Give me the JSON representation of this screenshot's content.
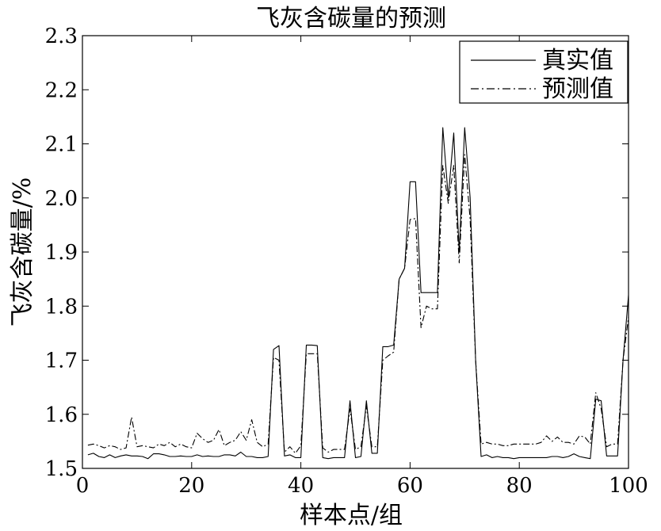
{
  "chart_data": {
    "type": "line",
    "title": "飞灰含碳量的预测",
    "xlabel": "样本点/组",
    "ylabel": "飞灰含碳量/%",
    "xlim": [
      0,
      100
    ],
    "ylim": [
      1.5,
      2.3
    ],
    "xticks": [
      0,
      20,
      40,
      60,
      80,
      100
    ],
    "yticks": [
      1.5,
      1.6,
      1.7,
      1.8,
      1.9,
      2.0,
      2.1,
      2.2,
      2.3
    ],
    "grid": false,
    "legend_position": "top-right",
    "x": [
      1,
      2,
      3,
      4,
      5,
      6,
      7,
      8,
      9,
      10,
      11,
      12,
      13,
      14,
      15,
      16,
      17,
      18,
      19,
      20,
      21,
      22,
      23,
      24,
      25,
      26,
      27,
      28,
      29,
      30,
      31,
      32,
      33,
      34,
      35,
      36,
      37,
      38,
      39,
      40,
      41,
      42,
      43,
      44,
      45,
      46,
      47,
      48,
      49,
      50,
      51,
      52,
      53,
      54,
      55,
      56,
      57,
      58,
      59,
      60,
      61,
      62,
      63,
      64,
      65,
      66,
      67,
      68,
      69,
      70,
      71,
      72,
      73,
      74,
      75,
      76,
      77,
      78,
      79,
      80,
      81,
      82,
      83,
      84,
      85,
      86,
      87,
      88,
      89,
      90,
      91,
      92,
      93,
      94,
      95,
      96,
      97,
      98,
      99,
      100
    ],
    "series": [
      {
        "name": "真实值",
        "style": "solid",
        "values": [
          1.525,
          1.528,
          1.522,
          1.52,
          1.525,
          1.52,
          1.523,
          1.525,
          1.523,
          1.523,
          1.522,
          1.518,
          1.527,
          1.527,
          1.525,
          1.522,
          1.522,
          1.523,
          1.522,
          1.522,
          1.525,
          1.522,
          1.523,
          1.522,
          1.522,
          1.525,
          1.525,
          1.523,
          1.53,
          1.522,
          1.522,
          1.52,
          1.52,
          1.522,
          1.72,
          1.727,
          1.523,
          1.525,
          1.52,
          1.52,
          1.728,
          1.728,
          1.727,
          1.52,
          1.518,
          1.52,
          1.52,
          1.52,
          1.625,
          1.52,
          1.522,
          1.625,
          1.528,
          1.528,
          1.725,
          1.725,
          1.728,
          1.85,
          1.87,
          2.03,
          2.03,
          1.825,
          1.825,
          1.825,
          1.825,
          2.13,
          2.0,
          2.12,
          1.9,
          2.13,
          2.0,
          1.7,
          1.522,
          1.525,
          1.52,
          1.522,
          1.52,
          1.52,
          1.518,
          1.52,
          1.52,
          1.52,
          1.52,
          1.52,
          1.52,
          1.522,
          1.522,
          1.52,
          1.522,
          1.527,
          1.522,
          1.52,
          1.518,
          1.628,
          1.625,
          1.523,
          1.523,
          1.523,
          1.7,
          1.82
        ]
      },
      {
        "name": "预测值",
        "style": "dashdot",
        "values": [
          1.543,
          1.545,
          1.542,
          1.538,
          1.542,
          1.54,
          1.535,
          1.538,
          1.595,
          1.54,
          1.542,
          1.54,
          1.538,
          1.545,
          1.542,
          1.548,
          1.54,
          1.545,
          1.54,
          1.538,
          1.565,
          1.555,
          1.548,
          1.552,
          1.572,
          1.542,
          1.548,
          1.552,
          1.568,
          1.552,
          1.59,
          1.548,
          1.54,
          1.545,
          1.705,
          1.7,
          1.53,
          1.54,
          1.528,
          1.542,
          1.712,
          1.712,
          1.712,
          1.538,
          1.53,
          1.535,
          1.535,
          1.535,
          1.61,
          1.535,
          1.54,
          1.615,
          1.54,
          1.54,
          1.7,
          1.708,
          1.715,
          1.85,
          1.87,
          1.96,
          1.962,
          1.76,
          1.8,
          1.795,
          1.795,
          2.06,
          1.99,
          2.06,
          1.88,
          2.08,
          1.96,
          1.7,
          1.545,
          1.548,
          1.545,
          1.545,
          1.542,
          1.542,
          1.545,
          1.545,
          1.545,
          1.545,
          1.545,
          1.548,
          1.56,
          1.55,
          1.558,
          1.548,
          1.548,
          1.545,
          1.56,
          1.558,
          1.545,
          1.64,
          1.61,
          1.54,
          1.545,
          1.545,
          1.7,
          1.78
        ]
      }
    ]
  }
}
